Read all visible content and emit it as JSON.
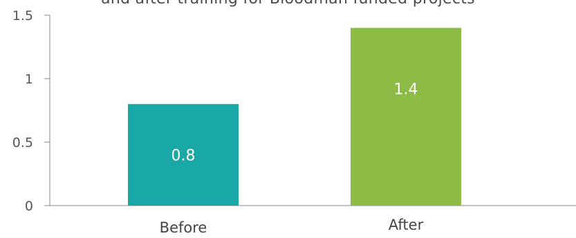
{
  "chart_data": {
    "type": "bar",
    "title": "and after training for Bloodman funded projects",
    "categories": [
      "Before",
      "After"
    ],
    "values": [
      0.8,
      1.4
    ],
    "data_labels": [
      "0.8",
      "1.4"
    ],
    "colors": [
      "#1aa8a6",
      "#8cbb46"
    ],
    "ylim": [
      0,
      1.5
    ],
    "yticks": [
      0,
      0.5,
      1,
      1.5
    ],
    "ytick_labels": [
      "0",
      "0.5",
      "1",
      "1.5"
    ],
    "grid": false,
    "legend": "none"
  }
}
